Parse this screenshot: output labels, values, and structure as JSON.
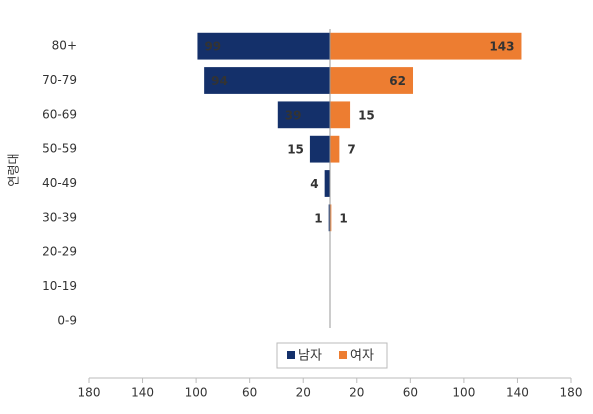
{
  "chart_data": {
    "type": "pyramid",
    "y_label": "연령대",
    "categories": [
      "80+",
      "70-79",
      "60-69",
      "50-59",
      "40-49",
      "30-39",
      "20-29",
      "10-19",
      "0-9"
    ],
    "series": [
      {
        "name": "남자",
        "color": "#14306a",
        "values": [
          99,
          94,
          39,
          15,
          4,
          1,
          0,
          0,
          0
        ]
      },
      {
        "name": "여자",
        "color": "#ed7d31",
        "values": [
          143,
          62,
          15,
          7,
          0,
          1,
          0,
          0,
          0
        ]
      }
    ],
    "xlim": [
      -180,
      180
    ],
    "xticks": [
      {
        "value": -180,
        "label": "180"
      },
      {
        "value": -140,
        "label": "140"
      },
      {
        "value": -100,
        "label": "100"
      },
      {
        "value": -60,
        "label": "60"
      },
      {
        "value": -20,
        "label": "20"
      },
      20,
      60,
      100,
      140,
      180
    ]
  }
}
